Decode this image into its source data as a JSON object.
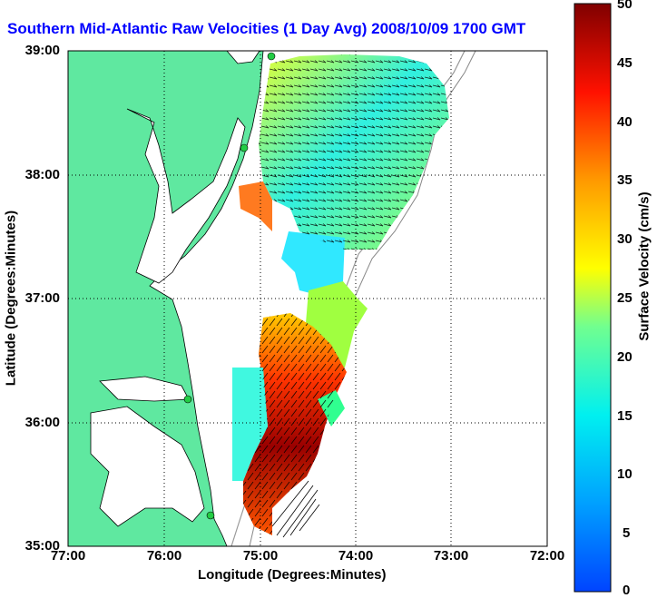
{
  "title": "Southern Mid-Atlantic Raw Velocities (1 Day Avg) 2008/10/09 1700 GMT",
  "xaxis_title": "Longitude (Degrees:Minutes)",
  "yaxis_title": "Latitude (Degrees:Minutes)",
  "x_ticks": [
    "77:00",
    "76:00",
    "75:00",
    "74:00",
    "73:00",
    "72:00"
  ],
  "y_ticks": [
    "39:00",
    "38:00",
    "37:00",
    "36:00",
    "35:00"
  ],
  "colorbar": {
    "title": "Surface Velocity (cm/s)",
    "ticks": [
      "50",
      "45",
      "40",
      "35",
      "30",
      "25",
      "20",
      "15",
      "10",
      "5",
      "0"
    ],
    "range": [
      0,
      50
    ]
  },
  "colors": {
    "land": "#5fe8a0",
    "title": "#0000ff",
    "station": "#22cc44"
  },
  "map": {
    "lon_range": [
      -77,
      -72
    ],
    "lat_range": [
      35,
      39
    ],
    "stations": [
      "station-1",
      "station-2",
      "station-3",
      "station-4"
    ]
  }
}
